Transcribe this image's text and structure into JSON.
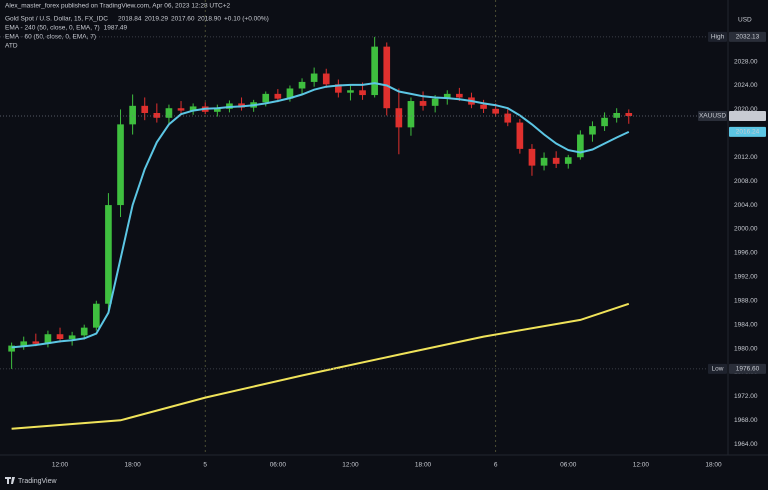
{
  "header": {
    "publisher": "Alex_master_forex published on TradingView.com, Apr 06, 2023 12:28 UTC+2"
  },
  "footer": {
    "brand": "TradingView"
  },
  "chart_data": {
    "type": "candlestick",
    "title": "Gold Spot / U.S. Dollar, 15, FX_IDC",
    "legend_values": [
      "2018.84",
      "2019.29",
      "2017.60",
      "2018.90",
      "+0.10 (+0.00%)"
    ],
    "legend_items": [
      "ATD"
    ],
    "y_unit": "USD",
    "up_color": "#3fbf3f",
    "down_color": "#e0302e",
    "x": [
      8,
      9,
      10,
      11,
      12,
      13,
      14,
      15,
      16,
      17,
      18,
      19,
      20,
      21,
      22,
      23,
      24,
      25,
      26,
      27,
      28,
      29,
      30,
      31,
      32,
      33,
      34,
      35,
      36,
      37,
      38,
      39,
      40,
      41,
      42,
      43,
      44,
      45,
      46,
      47,
      48,
      49,
      50,
      51,
      52,
      53,
      54,
      55,
      56,
      57,
      58,
      59
    ],
    "open": [
      1979.5,
      1980.5,
      1981.2,
      1980.8,
      1982.4,
      1981.6,
      1982.2,
      1983.5,
      1987.5,
      2004,
      2017.5,
      2020.6,
      2019.4,
      2018.6,
      2020.2,
      2019.8,
      2020.5,
      2019.6,
      2020.1,
      2021,
      2020.3,
      2021.2,
      2022.6,
      2021.8,
      2023.5,
      2024.6,
      2026,
      2024.2,
      2022.8,
      2023.2,
      2022.4,
      2030.5,
      2020.2,
      2017,
      2021.4,
      2020.6,
      2021.8,
      2022.6,
      2022,
      2020.8,
      2020.1,
      2019.3,
      2017.8,
      2013.4,
      2010.6,
      2011.9,
      2010.9,
      2012,
      2015.8,
      2017.2,
      2018.6,
      2019.4
    ],
    "high": [
      1981,
      1982,
      1982.5,
      1983,
      1983.5,
      1982.8,
      1984,
      1988,
      2006,
      2020,
      2022.5,
      2022,
      2021,
      2020.8,
      2021.4,
      2021,
      2021.2,
      2020.8,
      2021.5,
      2022,
      2021.6,
      2023,
      2023.4,
      2024,
      2025.2,
      2027,
      2026.8,
      2025,
      2024,
      2024.5,
      2032.13,
      2031.2,
      2023.5,
      2022,
      2023,
      2022.4,
      2023.2,
      2023.6,
      2022.8,
      2021.6,
      2021,
      2020.2,
      2018.4,
      2014.2,
      2012.8,
      2013,
      2012.4,
      2016.5,
      2018,
      2019.5,
      2020.2,
      2020
    ],
    "low": [
      1976.6,
      1979.8,
      1980.4,
      1980.2,
      1981,
      1980.5,
      1981.5,
      1983,
      1986.5,
      2002,
      2015.8,
      2018.2,
      2017.8,
      2017.5,
      2019,
      2019.1,
      2019.2,
      2018.8,
      2019.5,
      2019.8,
      2019.6,
      2020.5,
      2021.2,
      2021.3,
      2022.6,
      2023.8,
      2023.6,
      2022,
      2021.5,
      2021.6,
      2022,
      2019,
      2012.5,
      2015.6,
      2019.8,
      2019.5,
      2020.8,
      2021.4,
      2020.2,
      2019.4,
      2018.8,
      2017.2,
      2012.6,
      2008.9,
      2009.8,
      2010.2,
      2010.1,
      2011.6,
      2014.6,
      2016.4,
      2017.8,
      2017.6
    ],
    "close": [
      1980.5,
      1981.2,
      1980.8,
      1982.4,
      1981.6,
      1982.2,
      1983.5,
      1987.5,
      2004,
      2017.5,
      2020.6,
      2019.4,
      2018.6,
      2020.2,
      2019.8,
      2020.5,
      2019.6,
      2020.1,
      2021,
      2020.3,
      2021.2,
      2022.6,
      2021.8,
      2023.5,
      2024.6,
      2026,
      2024.2,
      2022.8,
      2023.2,
      2022.4,
      2030.5,
      2020.2,
      2017,
      2021.4,
      2020.6,
      2021.8,
      2022.6,
      2022,
      2020.8,
      2020.1,
      2019.3,
      2017.8,
      2013.4,
      2010.6,
      2011.9,
      2010.9,
      2012,
      2015.8,
      2017.2,
      2018.6,
      2019.4,
      2018.9
    ],
    "series": [
      {
        "name": "EMA - 240 (50, close, 0, EMA, 7)",
        "color": "#f0e35a",
        "x": [
          8,
          17,
          24,
          32,
          40,
          47,
          55,
          59
        ],
        "values": [
          1966.6,
          1968,
          1971.8,
          1975.5,
          1979,
          1982,
          1984.8,
          1987.49
        ]
      },
      {
        "name": "EMA - 60 (50, close, 0, EMA, 7)",
        "color": "#5cc6e4",
        "x": [
          8,
          9,
          10,
          11,
          12,
          13,
          14,
          15,
          16,
          17,
          18,
          19,
          20,
          21,
          22,
          23,
          24,
          25,
          26,
          27,
          28,
          29,
          30,
          31,
          32,
          33,
          34,
          35,
          36,
          37,
          38,
          39,
          40,
          41,
          42,
          43,
          44,
          45,
          46,
          47,
          48,
          49,
          50,
          51,
          52,
          53,
          54,
          55,
          56,
          57,
          58,
          59
        ],
        "values": [
          1980.2,
          1980.4,
          1980.6,
          1980.9,
          1981.2,
          1981.4,
          1981.7,
          1982.5,
          1986,
          1995,
          2004,
          2010,
          2014.5,
          2017.5,
          2019.2,
          2019.8,
          2020.1,
          2020.2,
          2020.4,
          2020.5,
          2020.7,
          2021,
          2021.4,
          2021.9,
          2022.5,
          2023.3,
          2023.8,
          2024,
          2024.1,
          2024.1,
          2024.4,
          2024,
          2023,
          2022.6,
          2022.2,
          2022,
          2021.9,
          2021.7,
          2021.4,
          2021,
          2020.7,
          2020.2,
          2019,
          2017.5,
          2015.8,
          2014.3,
          2013.2,
          2012.8,
          2013.3,
          2014.3,
          2015.3,
          2016.24
        ]
      }
    ],
    "markers": [
      {
        "name": "High",
        "value": 2032.13
      },
      {
        "name": "XAUUSD",
        "value": 2018.9,
        "value_label": "2018.90"
      },
      {
        "name": "Low",
        "value": 1976.6,
        "value_label": "1976.60"
      }
    ],
    "xlim": [
      7.04,
      67.2
    ],
    "ylim": [
      1962.2,
      2038.3
    ],
    "xticks": [
      {
        "value": 12,
        "label": "12:00"
      },
      {
        "value": 18,
        "label": "18:00"
      },
      {
        "value": 24,
        "label": "5"
      },
      {
        "value": 30,
        "label": "06:00"
      },
      {
        "value": 36,
        "label": "12:00"
      },
      {
        "value": 42,
        "label": "18:00"
      },
      {
        "value": 48,
        "label": "6"
      },
      {
        "value": 54,
        "label": "06:00"
      },
      {
        "value": 60,
        "label": "12:00"
      },
      {
        "value": 66,
        "label": "18:00"
      }
    ],
    "yticks": [
      {
        "value": 1964,
        "label": "1964.00"
      },
      {
        "value": 1968,
        "label": "1968.00"
      },
      {
        "value": 1972,
        "label": "1972.00"
      },
      {
        "value": 1976,
        "label": "1976.00"
      },
      {
        "value": 1980,
        "label": "1980.00"
      },
      {
        "value": 1984,
        "label": "1984.00"
      },
      {
        "value": 1988,
        "label": "1988.00"
      },
      {
        "value": 1992,
        "label": "1992.00"
      },
      {
        "value": 1996,
        "label": "1996.00"
      },
      {
        "value": 2000,
        "label": "2000.00"
      },
      {
        "value": 2004,
        "label": "2004.00"
      },
      {
        "value": 2008,
        "label": "2008.00"
      },
      {
        "value": 2012,
        "label": "2012.00"
      },
      {
        "value": 2016,
        "label": "2016.00"
      },
      {
        "value": 2020,
        "label": "2020.00"
      },
      {
        "value": 2024,
        "label": "2024.00"
      },
      {
        "value": 2028,
        "label": "2028.00"
      }
    ],
    "grid": false
  }
}
